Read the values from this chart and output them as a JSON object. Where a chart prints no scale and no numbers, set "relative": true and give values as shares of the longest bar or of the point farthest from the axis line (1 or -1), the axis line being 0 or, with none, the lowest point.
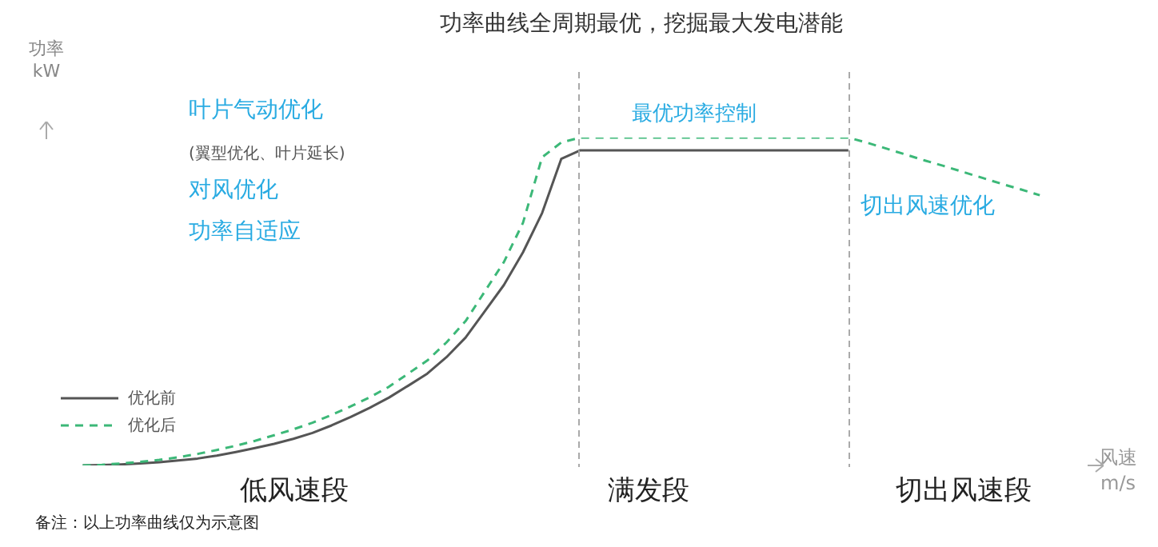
{
  "chart_data": {
    "type": "line",
    "title": "功率曲线全周期最优，挖掘最大发电潜能",
    "xlabel": "风速 m/s",
    "ylabel": "功率 kW",
    "relative": true,
    "marker": "none",
    "legend": "bottom left",
    "categories": [
      null,
      null,
      null,
      null,
      null,
      null,
      null,
      null,
      null,
      null,
      null,
      null,
      null,
      null,
      null,
      null,
      null,
      null,
      null,
      null,
      null,
      null,
      null,
      null,
      null,
      null,
      null,
      null,
      null,
      null,
      null,
      null,
      null,
      null,
      null,
      null,
      null,
      null,
      null,
      null,
      null,
      null,
      null,
      null,
      null,
      null,
      null,
      null,
      null,
      null,
      null
    ],
    "series": [
      {
        "name": "优化前",
        "color": "#555555",
        "line_style": "solid",
        "values": [
          0,
          0.001,
          0.003,
          0.006,
          0.01,
          0.015,
          0.021,
          0.03,
          0.041,
          0.053,
          0.066,
          0.081,
          0.099,
          0.122,
          0.148,
          0.176,
          0.207,
          0.243,
          0.28,
          0.33,
          0.39,
          0.47,
          0.55,
          0.65,
          0.77,
          0.935,
          0.961,
          0.961,
          0.961,
          0.961,
          0.961,
          0.961,
          0.961,
          0.961,
          0.961,
          0.961,
          0.961,
          0.961,
          0.961,
          0.961,
          0.961,
          null,
          null,
          null,
          null,
          null,
          null,
          null,
          null,
          null,
          null
        ]
      },
      {
        "name": "优化后",
        "color": "#3cb878",
        "line_style": "dashed",
        "values": [
          0,
          0.002,
          0.006,
          0.011,
          0.017,
          0.025,
          0.035,
          0.047,
          0.06,
          0.075,
          0.092,
          0.11,
          0.13,
          0.154,
          0.18,
          0.208,
          0.24,
          0.28,
          0.32,
          0.375,
          0.44,
          0.53,
          0.62,
          0.74,
          0.94,
          0.985,
          1,
          1,
          1,
          1,
          1,
          1,
          1,
          1,
          1,
          1,
          1,
          1,
          1,
          1,
          1,
          0.984,
          0.966,
          0.948,
          0.93,
          0.913,
          0.895,
          0.877,
          0.859,
          0.842,
          0.824
        ]
      }
    ],
    "annotations": [
      "叶片气动优化",
      "(翼型优化、叶片延长)",
      "对风优化",
      "功率自适应",
      "最优功率控制",
      "切出风速优化",
      "低风速段",
      "满发段",
      "切出风速段",
      "备注：以上功率曲线仅为示意图"
    ]
  }
}
